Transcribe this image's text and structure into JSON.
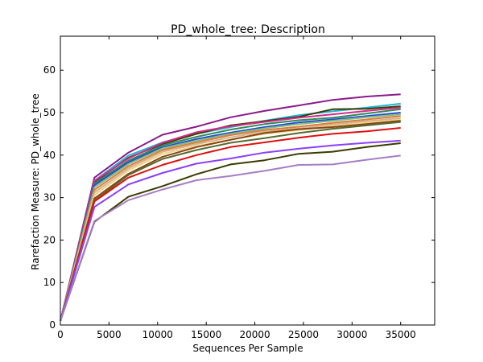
{
  "chart_data": {
    "type": "line",
    "title": "PD_whole_tree: Description",
    "xlabel": "Sequences Per Sample",
    "ylabel": "Rarefaction Measure: PD_whole_tree",
    "xlim": [
      0,
      38500
    ],
    "ylim": [
      0,
      68
    ],
    "xticks": [
      0,
      5000,
      10000,
      15000,
      20000,
      25000,
      30000,
      35000
    ],
    "yticks": [
      0,
      10,
      20,
      30,
      40,
      50,
      60
    ],
    "x": [
      10,
      3500,
      7000,
      10500,
      14000,
      17500,
      21000,
      24500,
      28000,
      31500,
      35000
    ],
    "grid": false,
    "series": [
      {
        "color": "#8b1a8b",
        "values": [
          1.0,
          34.7,
          40.6,
          44.8,
          46.7,
          48.9,
          50.4,
          51.7,
          53.0,
          53.8,
          54.3
        ]
      },
      {
        "color": "#1fb7d6",
        "values": [
          1.0,
          34.0,
          39.9,
          43.0,
          45.0,
          46.6,
          48.1,
          49.4,
          50.3,
          51.2,
          52.1
        ]
      },
      {
        "color": "#3b3b00",
        "values": [
          1.0,
          33.6,
          39.4,
          42.6,
          45.0,
          47.0,
          48.0,
          49.0,
          50.8,
          50.9,
          51.5
        ]
      },
      {
        "color": "#d62a8a",
        "values": [
          1.0,
          33.9,
          39.2,
          42.9,
          45.4,
          46.8,
          47.8,
          48.8,
          49.6,
          50.4,
          51.2
        ]
      },
      {
        "color": "#2e8b57",
        "values": [
          1.0,
          33.3,
          38.7,
          42.3,
          44.3,
          46.0,
          47.3,
          48.2,
          48.8,
          49.8,
          50.8
        ]
      },
      {
        "color": "#2a4bd7",
        "values": [
          1.0,
          32.9,
          38.3,
          41.9,
          43.8,
          45.3,
          46.6,
          47.7,
          48.4,
          49.2,
          50.0
        ]
      },
      {
        "color": "#7fbf7f",
        "values": [
          1.0,
          32.4,
          37.9,
          41.6,
          43.4,
          45.0,
          46.3,
          47.3,
          48.1,
          48.9,
          49.6
        ]
      },
      {
        "color": "#e07b39",
        "values": [
          1.0,
          31.8,
          37.4,
          41.2,
          43.0,
          44.7,
          45.9,
          46.7,
          47.6,
          48.4,
          49.2
        ]
      },
      {
        "color": "#d2b48c",
        "values": [
          1.0,
          31.2,
          36.9,
          40.8,
          42.6,
          44.2,
          45.5,
          46.3,
          47.2,
          48.0,
          48.7
        ]
      },
      {
        "color": "#f0d080",
        "values": [
          1.0,
          30.6,
          36.4,
          40.3,
          42.1,
          43.7,
          45.0,
          45.9,
          46.8,
          47.6,
          48.3
        ]
      },
      {
        "color": "#8b4513",
        "values": [
          1.0,
          29.8,
          35.6,
          39.6,
          41.9,
          43.6,
          45.2,
          46.1,
          46.6,
          47.3,
          48.1
        ]
      },
      {
        "color": "#556b2f",
        "values": [
          1.0,
          29.3,
          35.3,
          39.1,
          41.2,
          42.9,
          44.0,
          45.2,
          46.2,
          47.0,
          47.8
        ]
      },
      {
        "color": "#e01010",
        "values": [
          1.0,
          29.1,
          34.7,
          37.7,
          40.0,
          41.9,
          43.0,
          44.1,
          45.0,
          45.6,
          46.4
        ]
      },
      {
        "color": "#8a3ffc",
        "values": [
          1.0,
          27.8,
          33.1,
          35.8,
          38.0,
          39.2,
          40.6,
          41.5,
          42.3,
          42.9,
          43.4
        ]
      },
      {
        "color": "#3b3b00",
        "values": [
          1.0,
          24.3,
          30.2,
          32.7,
          35.5,
          37.8,
          38.8,
          40.3,
          40.8,
          41.9,
          42.8
        ]
      },
      {
        "color": "#a57fc4",
        "values": [
          1.0,
          24.5,
          29.4,
          31.9,
          34.1,
          35.1,
          36.3,
          37.7,
          37.8,
          38.9,
          39.9
        ]
      }
    ]
  }
}
